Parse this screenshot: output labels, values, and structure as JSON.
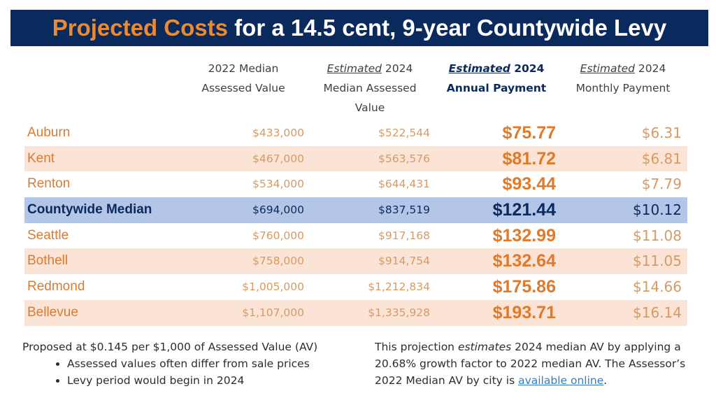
{
  "title": {
    "accent": "Projected Costs",
    "rest": " for a 14.5 cent, 9-year Countywide Levy"
  },
  "headers": {
    "col1_line1": "2022 Median",
    "col1_line2": "Assessed Value",
    "col2_em": "Estimated",
    "col2_rest": " 2024",
    "col2_line2": "Median Assessed",
    "col2_line3": "Value",
    "col3_em": "Estimated",
    "col3_rest": " 2024",
    "col3_line2": "Annual Payment",
    "col4_em": "Estimated",
    "col4_rest": " 2024",
    "col4_line2": "Monthly Payment"
  },
  "rows": [
    {
      "city": "Auburn",
      "median_2022": "$433,000",
      "median_2024": "$522,544",
      "annual": "$75.77",
      "monthly": "$6.31"
    },
    {
      "city": "Kent",
      "median_2022": "$467,000",
      "median_2024": "$563,576",
      "annual": "$81.72",
      "monthly": "$6.81"
    },
    {
      "city": "Renton",
      "median_2022": "$534,000",
      "median_2024": "$644,431",
      "annual": "$93.44",
      "monthly": "$7.79"
    },
    {
      "city": "Countywide Median",
      "median_2022": "$694,000",
      "median_2024": "$837,519",
      "annual": "$121.44",
      "monthly": "$10.12"
    },
    {
      "city": "Seattle",
      "median_2022": "$760,000",
      "median_2024": "$917,168",
      "annual": "$132.99",
      "monthly": "$11.08"
    },
    {
      "city": "Bothell",
      "median_2022": "$758,000",
      "median_2024": "$914,754",
      "annual": "$132.64",
      "monthly": "$11.05"
    },
    {
      "city": "Redmond",
      "median_2022": "$1,005,000",
      "median_2024": "$1,212,834",
      "annual": "$175.86",
      "monthly": "$14.66"
    },
    {
      "city": "Bellevue",
      "median_2022": "$1,107,000",
      "median_2024": "$1,335,928",
      "annual": "$193.71",
      "monthly": "$16.14"
    }
  ],
  "footer_left": {
    "intro": "Proposed at $0.145 per $1,000 of Assessed Value (AV)",
    "bullets": [
      "Assessed values often differ from sale prices",
      "Levy period would begin in 2024"
    ]
  },
  "footer_right": {
    "part1": "This projection ",
    "em": "estimates",
    "part2": " 2024 median AV by applying a 20.68% growth factor to 2022 median AV. The Assessor’s 2022 Median AV by city is ",
    "link": "available online",
    "part3": "."
  },
  "colors": {
    "navy": "#0a2a5e",
    "orange": "#e07a2b",
    "shade": "#fbe3d5",
    "highlight": "#b4c6e7",
    "link": "#2f7fc8"
  }
}
